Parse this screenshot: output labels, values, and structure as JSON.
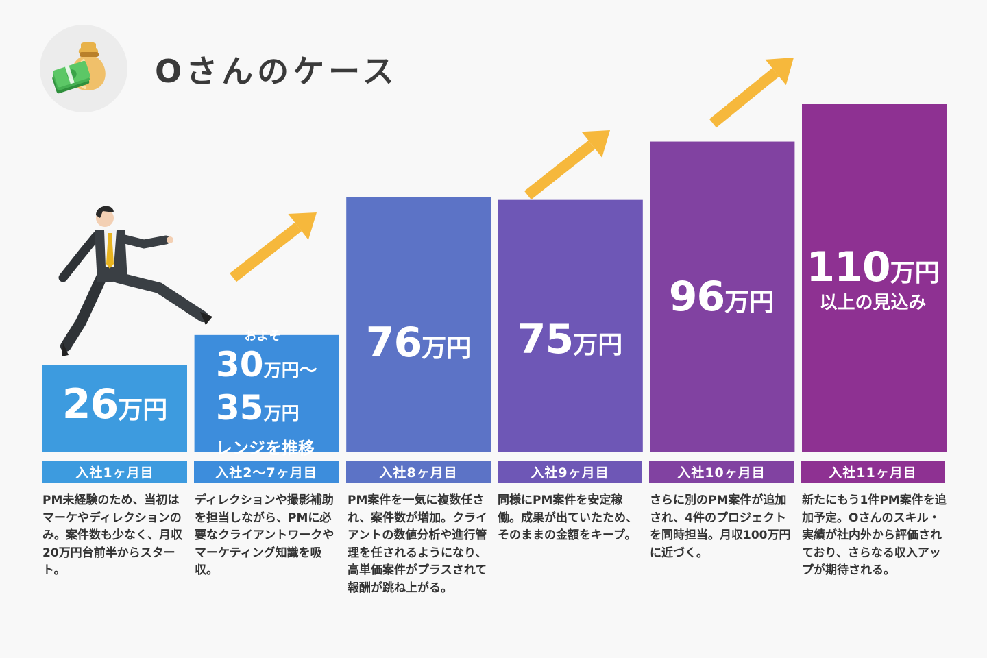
{
  "header": {
    "title": "Oさんのケース",
    "icon": "money-bag-icon"
  },
  "chart_data": {
    "type": "bar",
    "title": "Oさんのケース",
    "categories": [
      "入社1ヶ月目",
      "入社2〜7ヶ月目",
      "入社8ヶ月目",
      "入社9ヶ月目",
      "入社10ヶ月目",
      "入社11ヶ月目"
    ],
    "series": [
      {
        "values": [
          26,
          32.5,
          76,
          75,
          96,
          110
        ],
        "range_values": [
          [
            26,
            26
          ],
          [
            30,
            35
          ],
          [
            76,
            76
          ],
          [
            75,
            75
          ],
          [
            96,
            96
          ],
          [
            110,
            110
          ]
        ],
        "colors": [
          "#3d9bdf",
          "#3d8ddc",
          "#5c73c6",
          "#6e57b6",
          "#8142a1",
          "#8e3192"
        ]
      }
    ],
    "ylabel": "",
    "xlabel": "",
    "ylim": [
      0,
      120
    ],
    "grid": false,
    "legend": "none"
  },
  "bars": [
    {
      "num": "26",
      "unit": "万円",
      "period": "入社1ヶ月目",
      "desc": "PM未経験のため、当初はマーケやディレクションのみ。案件数も少なく、月収20万円台前半からスタート。"
    },
    {
      "prefix": "およそ",
      "num": "30",
      "unit": "万円〜",
      "num2": "35",
      "unit2": "万円",
      "suffix": "レンジを推移",
      "period": "入社2〜7ヶ月目",
      "desc": "ディレクションや撮影補助を担当しながら、PMに必要なクライアントワークやマーケティング知識を吸収。"
    },
    {
      "num": "76",
      "unit": "万円",
      "period": "入社8ヶ月目",
      "desc": "PM案件を一気に複数任され、案件数が増加。クライアントの数値分析や進行管理を任されるようになり、高単価案件がプラスされて報酬が跳ね上がる。"
    },
    {
      "num": "75",
      "unit": "万円",
      "period": "入社9ヶ月目",
      "desc": "同様にPM案件を安定稼働。成果が出ていたため、そのままの金額をキープ。"
    },
    {
      "num": "96",
      "unit": "万円",
      "period": "入社10ヶ月目",
      "desc": "さらに別のPM案件が追加され、4件のプロジェクトを同時担当。月収100万円に近づく。"
    },
    {
      "num": "110",
      "unit": "万円",
      "suffix": "以上の見込み",
      "period": "入社11ヶ月目",
      "desc": "新たにもう1件PM案件を追加予定。Oさんのスキル・実績が社内外から評価されており、さらなる収入アップが期待される。"
    }
  ],
  "colors": {
    "arrow": "#f6b83c",
    "text": "#333333"
  },
  "illustration": "running-businessman-icon"
}
